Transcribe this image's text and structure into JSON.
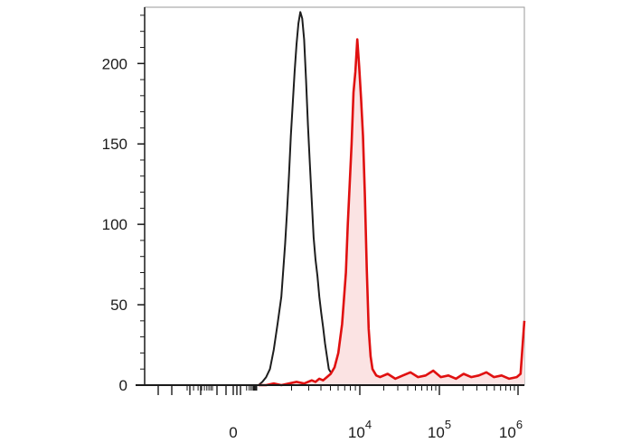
{
  "chart_data": {
    "type": "area",
    "y_ticks": [
      {
        "value": 0,
        "label": "0"
      },
      {
        "value": 50,
        "label": "50"
      },
      {
        "value": 100,
        "label": "100"
      },
      {
        "value": 150,
        "label": "150"
      },
      {
        "value": 200,
        "label": "200"
      }
    ],
    "x_ticks": [
      {
        "label": "0",
        "exp": ""
      },
      {
        "label": "10",
        "exp": "4"
      },
      {
        "label": "10",
        "exp": "5"
      },
      {
        "label": "10",
        "exp": "6"
      }
    ],
    "ylim": [
      0,
      235
    ],
    "grid": false,
    "colors": {
      "control": "#1e1e1e",
      "stained": "#e01010",
      "stained_fill": "#fbe3e3"
    },
    "series": [
      {
        "style": "black-outline",
        "x": [
          0.3,
          0.31,
          0.32,
          0.33,
          0.34,
          0.35,
          0.36,
          0.37,
          0.375,
          0.38,
          0.385,
          0.39,
          0.395,
          0.4,
          0.405,
          0.41,
          0.415,
          0.42,
          0.425,
          0.43,
          0.435,
          0.44,
          0.445,
          0.45,
          0.455,
          0.46,
          0.465,
          0.47,
          0.475,
          0.48,
          0.485,
          0.49,
          0.5,
          0.51,
          0.52,
          0.53,
          0.55
        ],
        "y": [
          0,
          2,
          5,
          10,
          22,
          38,
          55,
          88,
          108,
          130,
          155,
          175,
          195,
          212,
          225,
          232,
          228,
          215,
          190,
          162,
          138,
          115,
          92,
          78,
          68,
          55,
          45,
          36,
          26,
          18,
          10,
          8,
          5,
          3,
          2,
          1,
          0
        ]
      },
      {
        "style": "red-filled",
        "x": [
          0.3,
          0.32,
          0.34,
          0.36,
          0.38,
          0.4,
          0.42,
          0.44,
          0.45,
          0.46,
          0.47,
          0.48,
          0.49,
          0.5,
          0.51,
          0.52,
          0.53,
          0.535,
          0.54,
          0.545,
          0.55,
          0.555,
          0.56,
          0.565,
          0.57,
          0.575,
          0.58,
          0.585,
          0.59,
          0.595,
          0.6,
          0.605,
          0.61,
          0.62,
          0.64,
          0.66,
          0.68,
          0.7,
          0.72,
          0.74,
          0.76,
          0.78,
          0.8,
          0.82,
          0.84,
          0.86,
          0.88,
          0.9,
          0.92,
          0.94,
          0.96,
          0.98,
          0.99,
          1.0
        ],
        "y": [
          0,
          0,
          1,
          0,
          1,
          2,
          1,
          3,
          2,
          4,
          3,
          5,
          7,
          11,
          20,
          38,
          70,
          100,
          125,
          150,
          182,
          195,
          215,
          198,
          178,
          155,
          118,
          72,
          35,
          18,
          10,
          8,
          6,
          5,
          7,
          4,
          6,
          8,
          5,
          6,
          9,
          5,
          6,
          4,
          7,
          5,
          6,
          8,
          5,
          6,
          4,
          5,
          7,
          40
        ]
      }
    ]
  }
}
